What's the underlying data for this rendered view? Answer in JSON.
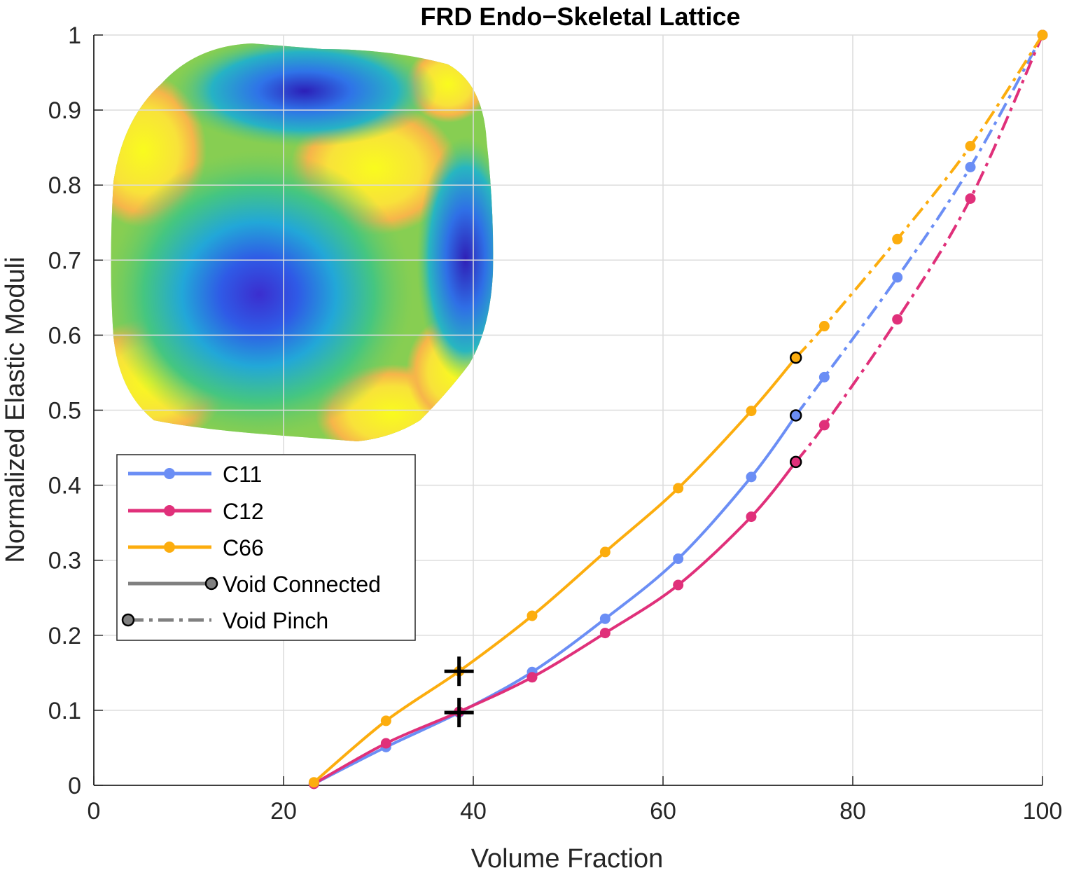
{
  "chart_data": {
    "type": "line",
    "title": "FRD Endo−Skeletal Lattice",
    "xlabel": "Volume Fraction",
    "ylabel": "Normalized Elastic Moduli",
    "xlim": [
      0,
      100
    ],
    "ylim": [
      0,
      1
    ],
    "x_ticks": [
      "0",
      "20",
      "40",
      "60",
      "80",
      "100"
    ],
    "y_ticks": [
      "0",
      "0.1",
      "0.2",
      "0.3",
      "0.4",
      "0.5",
      "0.6",
      "0.7",
      "0.8",
      "0.9",
      "1"
    ],
    "grid": true,
    "legend_position": "upper-left",
    "series": [
      {
        "name": "C11",
        "color": "#6b8ef5",
        "x": [
          23.2,
          30.8,
          38.5,
          46.2,
          53.9,
          61.6,
          69.3,
          74.0,
          77.0,
          84.7,
          92.4,
          100
        ],
        "y": [
          0.002,
          0.051,
          0.097,
          0.151,
          0.222,
          0.302,
          0.411,
          0.493,
          0.544,
          0.677,
          0.824,
          1.0
        ]
      },
      {
        "name": "C12",
        "color": "#e0307a",
        "x": [
          23.2,
          30.8,
          38.5,
          46.2,
          53.9,
          61.6,
          69.3,
          74.0,
          77.0,
          84.7,
          92.4,
          100
        ],
        "y": [
          0.002,
          0.056,
          0.098,
          0.144,
          0.203,
          0.267,
          0.358,
          0.431,
          0.48,
          0.621,
          0.782,
          1.0
        ]
      },
      {
        "name": "C66",
        "color": "#fcad0e",
        "x": [
          23.2,
          30.8,
          38.5,
          46.2,
          53.9,
          61.6,
          69.3,
          74.0,
          77.0,
          84.7,
          92.4,
          100
        ],
        "y": [
          0.004,
          0.086,
          0.152,
          0.226,
          0.311,
          0.396,
          0.499,
          0.57,
          0.612,
          0.728,
          0.852,
          1.0
        ]
      }
    ],
    "transition_x": 74.0,
    "connected_range": [
      23.2,
      74.0
    ],
    "pinch_range": [
      74.0,
      100
    ],
    "marked_points": [
      {
        "x": 38.5,
        "y": 0.152,
        "symbol": "+"
      },
      {
        "x": 38.5,
        "y": 0.097,
        "symbol": "+"
      }
    ],
    "legend": {
      "entries": [
        "C11",
        "C12",
        "C66",
        "Void Connected",
        "Void Pinch"
      ],
      "style_color": "#808080"
    }
  }
}
